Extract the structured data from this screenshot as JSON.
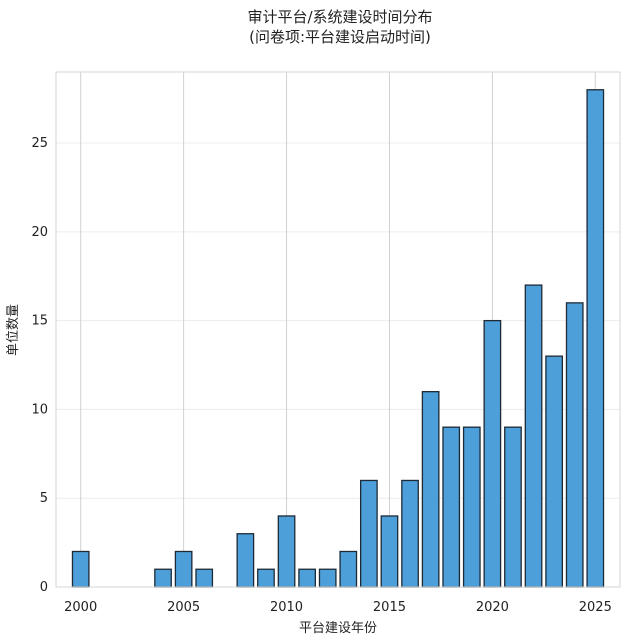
{
  "chart_data": {
    "type": "bar",
    "title": "审计平台/系统建设时间分布",
    "subtitle": "(问卷项:平台建设启动时间)",
    "xlabel": "平台建设年份",
    "ylabel": "单位数量",
    "x": [
      2000,
      2004,
      2005,
      2006,
      2008,
      2009,
      2010,
      2011,
      2012,
      2013,
      2014,
      2015,
      2016,
      2017,
      2018,
      2019,
      2020,
      2021,
      2022,
      2023,
      2024,
      2025
    ],
    "values": [
      2,
      1,
      2,
      1,
      3,
      1,
      4,
      1,
      1,
      2,
      6,
      4,
      6,
      11,
      9,
      9,
      15,
      9,
      17,
      13,
      16,
      28
    ],
    "xlim": [
      1998.8,
      2026.2
    ],
    "ylim": [
      0,
      29
    ],
    "xticks": [
      2000,
      2005,
      2010,
      2015,
      2020,
      2025
    ],
    "yticks": [
      0,
      5,
      10,
      15,
      20,
      25
    ],
    "grid": true,
    "bar_color": "#4c9fd8"
  }
}
